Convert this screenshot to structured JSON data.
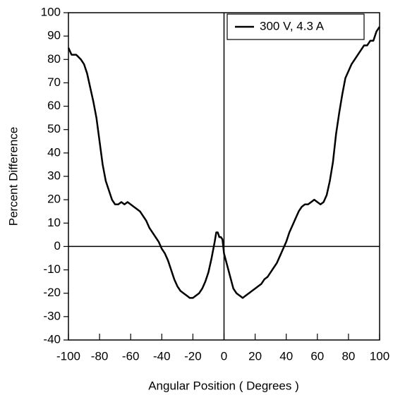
{
  "chart_data": {
    "type": "line",
    "x_label": "Angular Position ( Degrees )",
    "y_label": "Percent Difference",
    "x": [
      -100,
      -98,
      -95,
      -92,
      -90,
      -88,
      -86,
      -84,
      -82,
      -80,
      -78,
      -76,
      -74,
      -72,
      -70,
      -68,
      -66,
      -64,
      -62,
      -60,
      -58,
      -56,
      -54,
      -52,
      -50,
      -48,
      -46,
      -44,
      -42,
      -40,
      -38,
      -36,
      -34,
      -32,
      -30,
      -28,
      -26,
      -24,
      -22,
      -20,
      -18,
      -16,
      -14,
      -12,
      -10,
      -8,
      -6,
      -5,
      -4,
      -3,
      -2,
      -1,
      0,
      2,
      4,
      6,
      8,
      10,
      12,
      14,
      16,
      18,
      20,
      22,
      24,
      26,
      28,
      30,
      32,
      34,
      36,
      38,
      40,
      42,
      44,
      46,
      48,
      50,
      52,
      54,
      56,
      58,
      60,
      62,
      64,
      66,
      68,
      70,
      72,
      74,
      76,
      78,
      80,
      82,
      84,
      86,
      88,
      90,
      92,
      94,
      96,
      98,
      100
    ],
    "series": [
      {
        "name": "300 V, 4.3 A",
        "color": "#000000",
        "values": [
          85,
          82,
          82,
          80,
          78,
          74,
          68,
          62,
          55,
          45,
          35,
          28,
          24,
          20,
          18,
          18,
          19,
          18,
          19,
          18,
          17,
          16,
          15,
          13,
          11,
          8,
          6,
          4,
          2,
          -1,
          -3,
          -6,
          -10,
          -14,
          -17,
          -19,
          -20,
          -21,
          -22,
          -22,
          -21,
          -20,
          -18,
          -15,
          -11,
          -5,
          2,
          6,
          6,
          4,
          4,
          3,
          -3,
          -8,
          -13,
          -18,
          -20,
          -21,
          -22,
          -21,
          -20,
          -19,
          -18,
          -17,
          -16,
          -14,
          -13,
          -11,
          -9,
          -7,
          -4,
          -1,
          2,
          6,
          9,
          12,
          15,
          17,
          18,
          18,
          19,
          20,
          19,
          18,
          19,
          22,
          28,
          36,
          48,
          57,
          65,
          72,
          75,
          78,
          80,
          82,
          84,
          86,
          86,
          88,
          88,
          92,
          94
        ]
      }
    ],
    "xlim": [
      -100,
      100
    ],
    "xticks": [
      -100,
      -80,
      -60,
      -40,
      -20,
      0,
      20,
      40,
      60,
      80,
      100
    ],
    "ylim": [
      -40,
      100
    ],
    "yticks": [
      -40,
      -30,
      -20,
      -10,
      0,
      10,
      20,
      30,
      40,
      50,
      60,
      70,
      80,
      90,
      100
    ],
    "zero_lines": true,
    "legend": "upper right"
  }
}
